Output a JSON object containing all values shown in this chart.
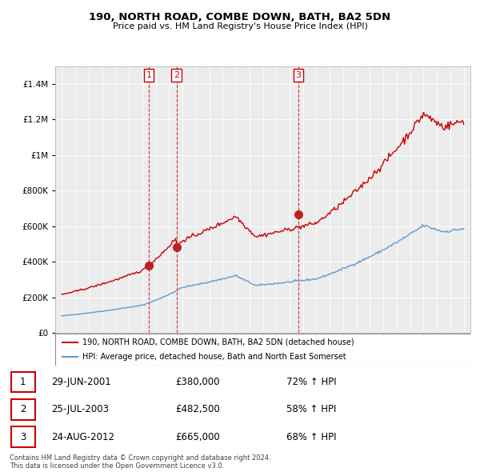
{
  "title": "190, NORTH ROAD, COMBE DOWN, BATH, BA2 5DN",
  "subtitle": "Price paid vs. HM Land Registry's House Price Index (HPI)",
  "transactions": [
    {
      "num": 1,
      "date_label": "29-JUN-2001",
      "date_x": 2001.49,
      "price": 380000,
      "pct": "72%",
      "dir": "↑"
    },
    {
      "num": 2,
      "date_label": "25-JUL-2003",
      "date_x": 2003.56,
      "price": 482500,
      "pct": "58%",
      "dir": "↑"
    },
    {
      "num": 3,
      "date_label": "24-AUG-2012",
      "date_x": 2012.65,
      "price": 665000,
      "pct": "68%",
      "dir": "↑"
    }
  ],
  "legend_entries": [
    "190, NORTH ROAD, COMBE DOWN, BATH, BA2 5DN (detached house)",
    "HPI: Average price, detached house, Bath and North East Somerset"
  ],
  "footer_lines": [
    "Contains HM Land Registry data © Crown copyright and database right 2024.",
    "This data is licensed under the Open Government Licence v3.0."
  ],
  "hpi_color": "#6699cc",
  "price_color": "#cc0000",
  "vline_color": "#cc0000",
  "background_color": "#ffffff",
  "plot_bg_color": "#ececec",
  "grid_color": "#ffffff",
  "ylim": [
    0,
    1500000
  ],
  "yticks": [
    0,
    200000,
    400000,
    600000,
    800000,
    1000000,
    1200000,
    1400000
  ],
  "xlim": [
    1994.5,
    2025.5
  ],
  "xticks": [
    1995,
    1996,
    1997,
    1998,
    1999,
    2000,
    2001,
    2002,
    2003,
    2004,
    2005,
    2006,
    2007,
    2008,
    2009,
    2010,
    2011,
    2012,
    2013,
    2014,
    2015,
    2016,
    2017,
    2018,
    2019,
    2020,
    2021,
    2022,
    2023,
    2024,
    2025
  ]
}
